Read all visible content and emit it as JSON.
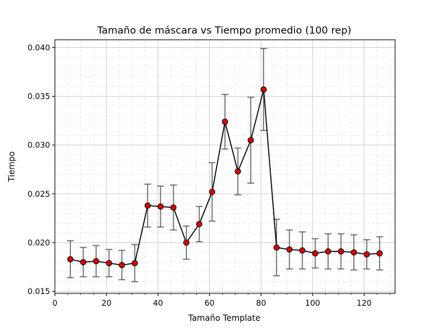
{
  "chart_data": {
    "type": "line",
    "title": "Tamaño de máscara vs Tiempo promedio (100 rep)",
    "xlabel": "Tamaño Template",
    "ylabel": "Tiempo",
    "xlim": [
      0,
      132
    ],
    "ylim": [
      0.0148,
      0.0408
    ],
    "x_ticks": [
      0,
      20,
      40,
      60,
      80,
      100,
      120
    ],
    "y_ticks": [
      0.015,
      0.02,
      0.025,
      0.03,
      0.035,
      0.04
    ],
    "x_tick_labels": [
      "0",
      "20",
      "40",
      "60",
      "80",
      "100",
      "120"
    ],
    "y_tick_labels": [
      "0.015",
      "0.020",
      "0.025",
      "0.030",
      "0.035",
      "0.040"
    ],
    "grid": true,
    "minor_grid": true,
    "colors": {
      "line": "#000000",
      "marker_face": "#dd0000",
      "marker_edge": "#000000",
      "errorbar": "#555555",
      "grid_major": "#cccccc",
      "grid_minor": "#e6e6e6"
    },
    "series": [
      {
        "x": [
          6,
          11,
          16,
          21,
          26,
          31,
          36,
          41,
          46,
          51,
          56,
          61,
          66,
          71,
          76,
          81,
          86,
          91,
          96,
          101,
          106,
          111,
          116,
          121,
          126
        ],
        "y": [
          0.0183,
          0.018,
          0.0181,
          0.0179,
          0.0177,
          0.0179,
          0.0238,
          0.0237,
          0.0236,
          0.02,
          0.0219,
          0.0252,
          0.0324,
          0.0273,
          0.0305,
          0.0357,
          0.0195,
          0.0193,
          0.0192,
          0.0189,
          0.0191,
          0.0191,
          0.019,
          0.0188,
          0.0189
        ],
        "err": [
          0.0019,
          0.0015,
          0.0016,
          0.0014,
          0.0015,
          0.0019,
          0.0022,
          0.0021,
          0.0023,
          0.0017,
          0.0018,
          0.003,
          0.0028,
          0.0024,
          0.0044,
          0.0042,
          0.0029,
          0.002,
          0.0019,
          0.0015,
          0.0018,
          0.0018,
          0.0018,
          0.0015,
          0.0017
        ]
      }
    ]
  }
}
